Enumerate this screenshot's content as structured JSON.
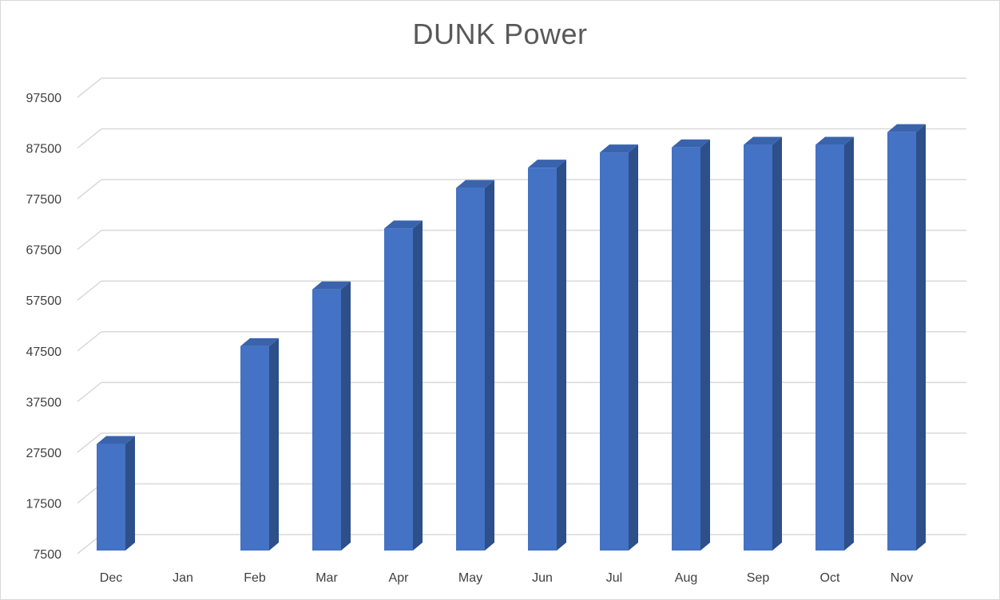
{
  "chart_data": {
    "type": "bar",
    "title": "DUNK Power",
    "xlabel": "",
    "ylabel": "",
    "categories": [
      "Dec",
      "Jan",
      "Feb",
      "Mar",
      "Apr",
      "May",
      "Jun",
      "Jul",
      "Aug",
      "Sep",
      "Oct",
      "Nov"
    ],
    "values": [
      28500,
      null,
      47800,
      59000,
      71000,
      79000,
      83000,
      86000,
      87000,
      87500,
      87500,
      90000
    ],
    "yticks": [
      "7500",
      "17500",
      "27500",
      "37500",
      "47500",
      "57500",
      "67500",
      "77500",
      "87500",
      "97500"
    ],
    "ylim": [
      7500,
      97500
    ],
    "grid": true,
    "legend": "none",
    "style": "3d-column",
    "colors": {
      "bar_front": "#4472c4",
      "bar_side": "#2d4f8a",
      "bar_top": "#3a63ad",
      "gridline": "#d9d9d9",
      "title": "#595959",
      "tick": "#404040"
    }
  }
}
